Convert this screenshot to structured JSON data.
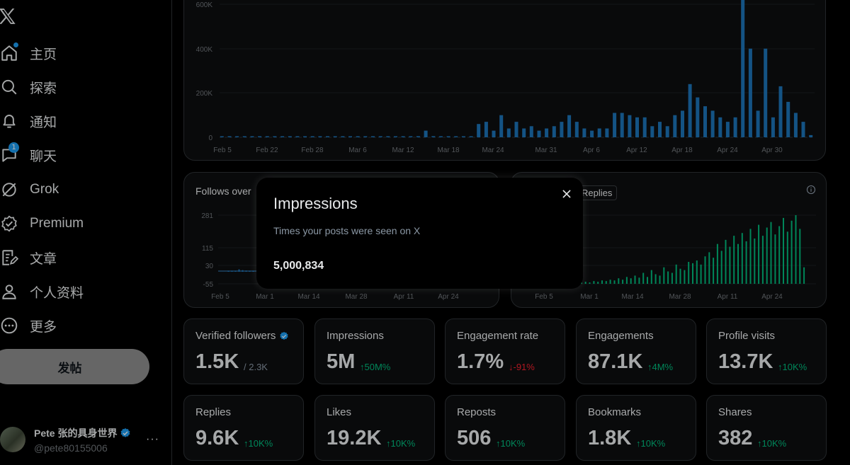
{
  "sidebar": {
    "nav": [
      {
        "label": "主页",
        "icon": "home-icon"
      },
      {
        "label": "探索",
        "icon": "search-icon"
      },
      {
        "label": "通知",
        "icon": "bell-icon"
      },
      {
        "label": "聊天",
        "icon": "chat-icon",
        "badge": "1"
      },
      {
        "label": "Grok",
        "icon": "grok-icon"
      },
      {
        "label": "Premium",
        "icon": "premium-icon"
      },
      {
        "label": "文章",
        "icon": "article-icon"
      },
      {
        "label": "个人资料",
        "icon": "profile-icon"
      },
      {
        "label": "更多",
        "icon": "more-icon"
      }
    ],
    "post_button": "发帖",
    "account": {
      "name": "Pete 张的具身世界",
      "handle": "@pete80155006",
      "more": "···"
    }
  },
  "charts": {
    "top": {
      "y_ticks": [
        "600K",
        "400K",
        "200K",
        "0"
      ],
      "x_ticks": [
        "Feb 5",
        "Feb 22",
        "Feb 28",
        "Mar 6",
        "Mar 12",
        "Mar 18",
        "Mar 24",
        "Mar 31",
        "Apr 6",
        "Apr 12",
        "Apr 18",
        "Apr 24",
        "Apr 30"
      ]
    },
    "follows": {
      "title": "Follows over",
      "y_ticks": [
        "281",
        "115",
        "30",
        "-55"
      ],
      "x_ticks": [
        "Feb 5",
        "Mar 1",
        "Mar 14",
        "Mar 28",
        "Apr 11",
        "Apr 24"
      ]
    },
    "replies": {
      "chip": "Replies",
      "x_ticks": [
        "Feb 5",
        "Mar 1",
        "Mar 14",
        "Mar 28",
        "Apr 11",
        "Apr 24"
      ]
    }
  },
  "chart_data": [
    {
      "type": "bar",
      "ylim": [
        0,
        600000
      ],
      "y_ticks": [
        "600K",
        "400K",
        "200K",
        "0"
      ],
      "x_ticks": [
        "Feb 5",
        "Feb 22",
        "Feb 28",
        "Mar 6",
        "Mar 12",
        "Mar 18",
        "Mar 24",
        "Mar 31",
        "Apr 6",
        "Apr 12",
        "Apr 18",
        "Apr 24",
        "Apr 30"
      ],
      "values": [
        1000,
        1000,
        1000,
        1000,
        1000,
        1000,
        2000,
        1000,
        1000,
        2000,
        1000,
        1000,
        1000,
        1000,
        2000,
        1000,
        1000,
        2000,
        1000,
        3000,
        1000,
        1000,
        2000,
        1000,
        1000,
        2000,
        5000,
        30000,
        5000,
        4000,
        3000,
        3000,
        2000,
        2000,
        60000,
        70000,
        30000,
        100000,
        40000,
        70000,
        40000,
        50000,
        30000,
        40000,
        50000,
        70000,
        100000,
        70000,
        40000,
        30000,
        40000,
        40000,
        110000,
        110000,
        100000,
        90000,
        90000,
        50000,
        70000,
        50000,
        100000,
        120000,
        240000,
        180000,
        140000,
        120000,
        90000,
        70000,
        90000,
        620000,
        400000,
        120000,
        400000,
        90000,
        230000,
        160000,
        110000,
        70000,
        10000
      ],
      "color": "#1d73b8"
    },
    {
      "type": "bar",
      "ylim": [
        -55,
        281
      ],
      "y_ticks": [
        "281",
        "115",
        "30",
        "-55"
      ],
      "x_ticks": [
        "Feb 5",
        "Mar 1",
        "Mar 14",
        "Mar 28",
        "Apr 11",
        "Apr 24"
      ],
      "values": [
        3,
        4,
        5,
        12,
        8,
        6,
        5,
        4
      ],
      "color": "#1d73b8"
    },
    {
      "type": "bar",
      "x_ticks": [
        "Feb 5",
        "Mar 1",
        "Mar 14",
        "Mar 28",
        "Apr 11",
        "Apr 24"
      ],
      "values": [
        2,
        3,
        2,
        4,
        3,
        5,
        4,
        6,
        5,
        8,
        6,
        10,
        8,
        12,
        9,
        16,
        10,
        20,
        14,
        12,
        24,
        18,
        16,
        28,
        22,
        20,
        32,
        30,
        34,
        28,
        40,
        46,
        38,
        58,
        48,
        64,
        54,
        70,
        58,
        74,
        62,
        80,
        66,
        86,
        70,
        82,
        90,
        72,
        84,
        96,
        76,
        92,
        100,
        80,
        24
      ],
      "color": "#00ba7c"
    }
  ],
  "metrics_row1": [
    {
      "label": "Verified followers",
      "value": "1.5K",
      "extra": "/ 2.3K",
      "extra_kind": "sub",
      "verified": true
    },
    {
      "label": "Impressions",
      "value": "5M",
      "extra": "↑50M%",
      "extra_kind": "up"
    },
    {
      "label": "Engagement rate",
      "value": "1.7%",
      "extra": "↓-91%",
      "extra_kind": "down"
    },
    {
      "label": "Engagements",
      "value": "87.1K",
      "extra": "↑4M%",
      "extra_kind": "up"
    },
    {
      "label": "Profile visits",
      "value": "13.7K",
      "extra": "↑10K%",
      "extra_kind": "up"
    }
  ],
  "metrics_row2": [
    {
      "label": "Replies",
      "value": "9.6K",
      "extra": "↑10K%",
      "extra_kind": "up"
    },
    {
      "label": "Likes",
      "value": "19.2K",
      "extra": "↑10K%",
      "extra_kind": "up"
    },
    {
      "label": "Reposts",
      "value": "506",
      "extra": "↑10K%",
      "extra_kind": "up"
    },
    {
      "label": "Bookmarks",
      "value": "1.8K",
      "extra": "↑10K%",
      "extra_kind": "up"
    },
    {
      "label": "Shares",
      "value": "382",
      "extra": "↑10K%",
      "extra_kind": "up"
    }
  ],
  "popup": {
    "title": "Impressions",
    "description": "Times your posts were seen on X",
    "value": "5,000,834"
  },
  "colors": {
    "accent": "#1d9bf0",
    "up": "#00ba7c",
    "down": "#f4212e",
    "bar": "#1d73b8"
  }
}
